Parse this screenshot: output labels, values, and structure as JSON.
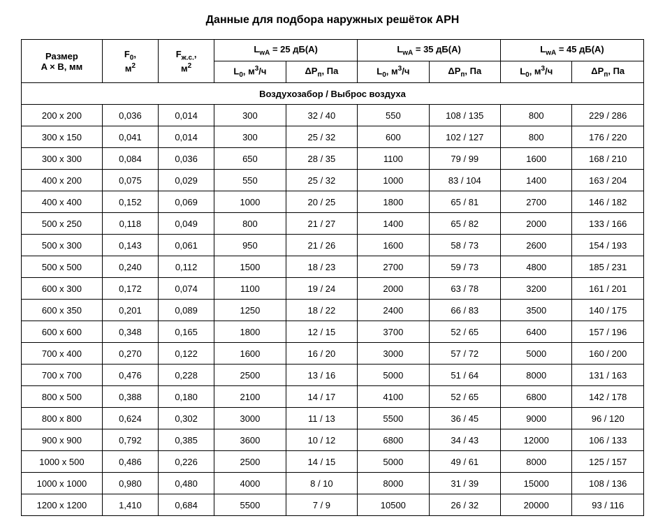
{
  "title": "Данные для подбора наружных решёток АРН",
  "headers": {
    "size_line1": "Размер",
    "size_line2": "A × B, мм",
    "f0_line1_html": "F<sub>0</sub>,",
    "f0_line2_html": "м<sup>2</sup>",
    "fzc_line1_html": "F<sub>ж.с.</sub>,",
    "fzc_line2_html": "м<sup>2</sup>",
    "lwa25_html": "L<sub>wA</sub> = 25 дБ(А)",
    "lwa35_html": "L<sub>wA</sub> = 35 дБ(А)",
    "lwa45_html": "L<sub>wA</sub> = 45 дБ(А)",
    "l0_html": "L<sub>0</sub>, м<sup>3</sup>/ч",
    "dp_html": "ΔP<sub>п</sub>, Па"
  },
  "section_label": "Воздухозабор / Выброс воздуха",
  "rows": [
    {
      "size": "200 х 200",
      "f0": "0,036",
      "fzc": "0,014",
      "l25": "300",
      "dp25": "32 / 40",
      "l35": "550",
      "dp35": "108 / 135",
      "l45": "800",
      "dp45": "229 / 286"
    },
    {
      "size": "300 х 150",
      "f0": "0,041",
      "fzc": "0,014",
      "l25": "300",
      "dp25": "25 / 32",
      "l35": "600",
      "dp35": "102 / 127",
      "l45": "800",
      "dp45": "176 / 220"
    },
    {
      "size": "300 х 300",
      "f0": "0,084",
      "fzc": "0,036",
      "l25": "650",
      "dp25": "28 / 35",
      "l35": "1100",
      "dp35": "79 / 99",
      "l45": "1600",
      "dp45": "168 / 210"
    },
    {
      "size": "400 х 200",
      "f0": "0,075",
      "fzc": "0,029",
      "l25": "550",
      "dp25": "25 / 32",
      "l35": "1000",
      "dp35": "83 / 104",
      "l45": "1400",
      "dp45": "163 / 204"
    },
    {
      "size": "400 х 400",
      "f0": "0,152",
      "fzc": "0,069",
      "l25": "1000",
      "dp25": "20 / 25",
      "l35": "1800",
      "dp35": "65 / 81",
      "l45": "2700",
      "dp45": "146 / 182"
    },
    {
      "size": "500 х 250",
      "f0": "0,118",
      "fzc": "0,049",
      "l25": "800",
      "dp25": "21 / 27",
      "l35": "1400",
      "dp35": "65 / 82",
      "l45": "2000",
      "dp45": "133 / 166"
    },
    {
      "size": "500 х 300",
      "f0": "0,143",
      "fzc": "0,061",
      "l25": "950",
      "dp25": "21 / 26",
      "l35": "1600",
      "dp35": "58 / 73",
      "l45": "2600",
      "dp45": "154 / 193"
    },
    {
      "size": "500 х 500",
      "f0": "0,240",
      "fzc": "0,112",
      "l25": "1500",
      "dp25": "18 / 23",
      "l35": "2700",
      "dp35": "59 / 73",
      "l45": "4800",
      "dp45": "185 / 231"
    },
    {
      "size": "600 х 300",
      "f0": "0,172",
      "fzc": "0,074",
      "l25": "1100",
      "dp25": "19 / 24",
      "l35": "2000",
      "dp35": "63 / 78",
      "l45": "3200",
      "dp45": "161 / 201"
    },
    {
      "size": "600 х 350",
      "f0": "0,201",
      "fzc": "0,089",
      "l25": "1250",
      "dp25": "18 / 22",
      "l35": "2400",
      "dp35": "66 / 83",
      "l45": "3500",
      "dp45": "140 / 175"
    },
    {
      "size": "600 х 600",
      "f0": "0,348",
      "fzc": "0,165",
      "l25": "1800",
      "dp25": "12 / 15",
      "l35": "3700",
      "dp35": "52 / 65",
      "l45": "6400",
      "dp45": "157 / 196"
    },
    {
      "size": "700 х 400",
      "f0": "0,270",
      "fzc": "0,122",
      "l25": "1600",
      "dp25": "16 / 20",
      "l35": "3000",
      "dp35": "57 / 72",
      "l45": "5000",
      "dp45": "160 / 200"
    },
    {
      "size": "700 х 700",
      "f0": "0,476",
      "fzc": "0,228",
      "l25": "2500",
      "dp25": "13 / 16",
      "l35": "5000",
      "dp35": "51 / 64",
      "l45": "8000",
      "dp45": "131 / 163"
    },
    {
      "size": "800 х 500",
      "f0": "0,388",
      "fzc": "0,180",
      "l25": "2100",
      "dp25": "14 / 17",
      "l35": "4100",
      "dp35": "52 / 65",
      "l45": "6800",
      "dp45": "142 / 178"
    },
    {
      "size": "800 х 800",
      "f0": "0,624",
      "fzc": "0,302",
      "l25": "3000",
      "dp25": "11 / 13",
      "l35": "5500",
      "dp35": "36 / 45",
      "l45": "9000",
      "dp45": "96 / 120"
    },
    {
      "size": "900 х 900",
      "f0": "0,792",
      "fzc": "0,385",
      "l25": "3600",
      "dp25": "10 / 12",
      "l35": "6800",
      "dp35": "34 / 43",
      "l45": "12000",
      "dp45": "106 / 133"
    },
    {
      "size": "1000 х 500",
      "f0": "0,486",
      "fzc": "0,226",
      "l25": "2500",
      "dp25": "14 / 15",
      "l35": "5000",
      "dp35": "49 / 61",
      "l45": "8000",
      "dp45": "125 / 157"
    },
    {
      "size": "1000 х 1000",
      "f0": "0,980",
      "fzc": "0,480",
      "l25": "4000",
      "dp25": "8 / 10",
      "l35": "8000",
      "dp35": "31 / 39",
      "l45": "15000",
      "dp45": "108 / 136"
    },
    {
      "size": "1200 х 1200",
      "f0": "1,410",
      "fzc": "0,684",
      "l25": "5500",
      "dp25": "7 / 9",
      "l35": "10500",
      "dp35": "26 / 32",
      "l45": "20000",
      "dp45": "93 / 116"
    }
  ]
}
